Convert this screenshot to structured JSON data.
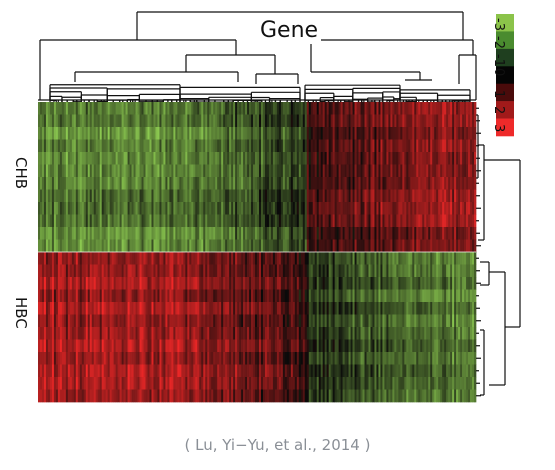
{
  "chart_data": {
    "type": "heatmap",
    "title": "Gene",
    "row_groups": [
      "CHB",
      "HBC"
    ],
    "color_scale": {
      "ticks": [
        "-3",
        "-2",
        "-1",
        "0",
        "1",
        "2",
        "3"
      ],
      "colors": [
        "#8bc34a",
        "#4a8b2f",
        "#1f3f1f",
        "#050505",
        "#4a0b0b",
        "#a11a1a",
        "#ee2a2a"
      ]
    },
    "pattern": {
      "CHB": {
        "left_gene_cluster": "green (low)",
        "right_gene_cluster": "red (high)"
      },
      "HBC": {
        "left_gene_cluster": "red (high)",
        "right_gene_cluster": "green (low)"
      }
    },
    "row_dendrogram": true,
    "column_dendrogram": true
  },
  "caption": "( Lu, Yi−Yu, et al., 2014 )"
}
